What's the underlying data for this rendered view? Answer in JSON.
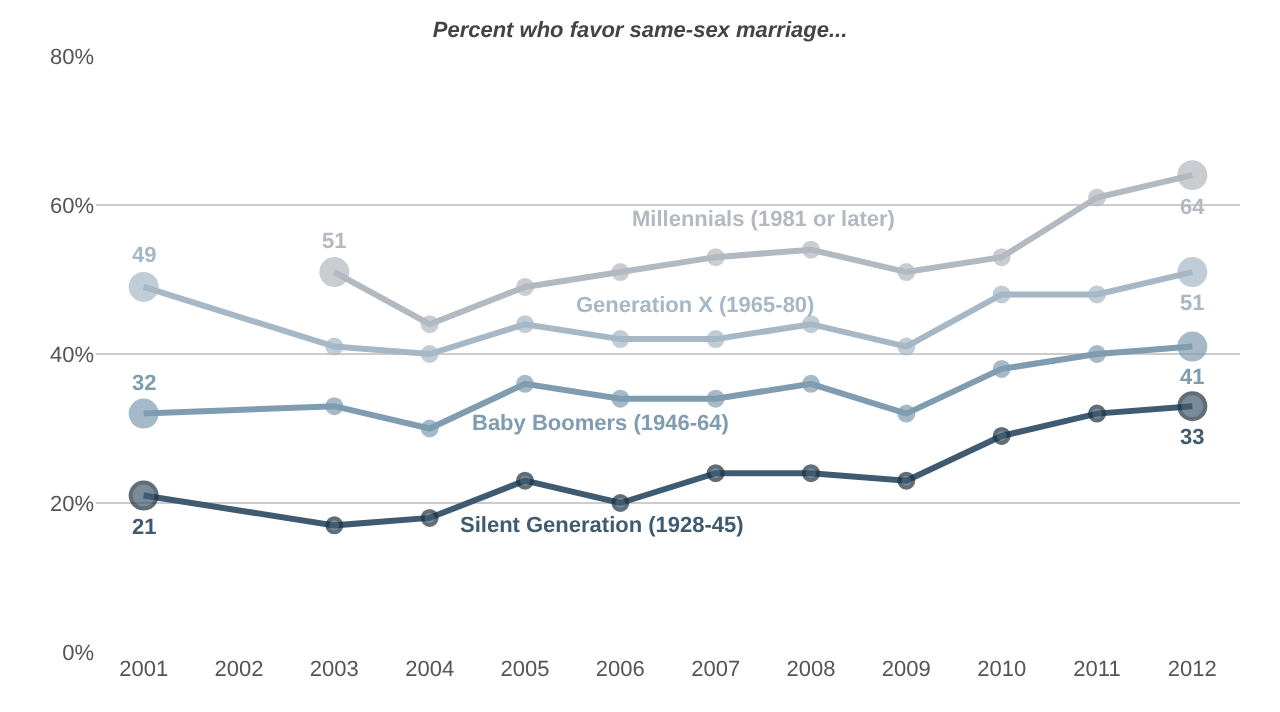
{
  "chart_data": {
    "type": "line",
    "title": "Percent who favor same-sex marriage...",
    "categories": [
      "2001",
      "2002",
      "2003",
      "2004",
      "2005",
      "2006",
      "2007",
      "2008",
      "2009",
      "2010",
      "2011",
      "2012"
    ],
    "series": [
      {
        "name": "Millennials (1981 or later)",
        "color": "#b3b9c0",
        "values": [
          null,
          null,
          51,
          44,
          49,
          51,
          53,
          54,
          51,
          53,
          61,
          64
        ],
        "value_labels": [
          null,
          null,
          "51",
          null,
          null,
          null,
          null,
          null,
          null,
          null,
          null,
          "64"
        ]
      },
      {
        "name": "Generation X (1965-80)",
        "color": "#a6b8c6",
        "values": [
          49,
          null,
          41,
          40,
          44,
          42,
          42,
          44,
          41,
          48,
          48,
          51
        ],
        "value_labels": [
          "49",
          null,
          null,
          null,
          null,
          null,
          null,
          null,
          null,
          null,
          null,
          "51"
        ]
      },
      {
        "name": "Baby Boomers (1946-64)",
        "color": "#7f9cb1",
        "values": [
          32,
          null,
          33,
          30,
          36,
          34,
          34,
          36,
          32,
          38,
          40,
          41
        ],
        "value_labels": [
          "32",
          null,
          null,
          null,
          null,
          null,
          null,
          null,
          null,
          null,
          null,
          "41"
        ]
      },
      {
        "name": "Silent Generation (1928-45)",
        "color": "#3f5b71",
        "values": [
          21,
          null,
          17,
          18,
          23,
          20,
          24,
          24,
          23,
          29,
          32,
          33
        ],
        "value_labels": [
          "21",
          null,
          null,
          null,
          null,
          null,
          null,
          null,
          null,
          null,
          null,
          "33"
        ]
      }
    ],
    "ylim": [
      0,
      80
    ],
    "yticks": [
      {
        "value": 0,
        "label": "0%"
      },
      {
        "value": 20,
        "label": "20%"
      },
      {
        "value": 40,
        "label": "40%"
      },
      {
        "value": 60,
        "label": "60%"
      },
      {
        "value": 80,
        "label": "80%"
      }
    ],
    "grid": "y",
    "legend": false,
    "marker": "circle",
    "line_style": "solid"
  }
}
